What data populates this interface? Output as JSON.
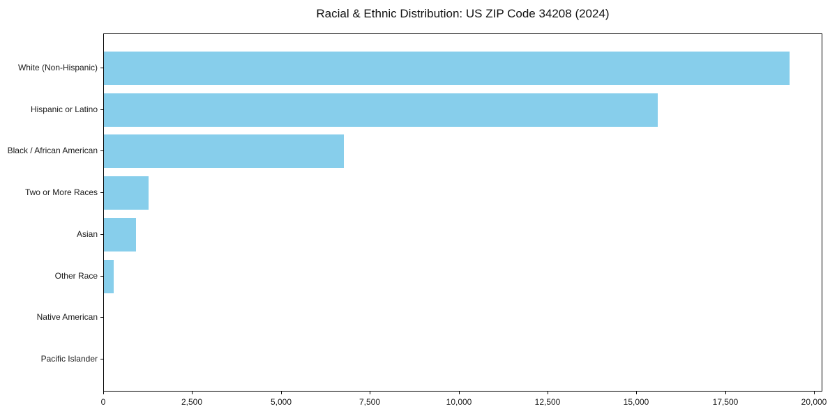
{
  "chart_data": {
    "type": "bar",
    "orientation": "horizontal",
    "title": "Racial & Ethnic Distribution: US ZIP Code 34208 (2024)",
    "xlabel": "",
    "ylabel": "",
    "categories": [
      "White (Non-Hispanic)",
      "Hispanic or Latino",
      "Black / African American",
      "Two or More Races",
      "Asian",
      "Other Race",
      "Native American",
      "Pacific Islander"
    ],
    "values": [
      19300,
      15580,
      6750,
      1250,
      900,
      280,
      0,
      0
    ],
    "xlim": [
      0,
      20240
    ],
    "x_ticks": [
      0,
      2500,
      5000,
      7500,
      10000,
      12500,
      15000,
      17500,
      20000
    ],
    "x_tick_labels": [
      "0",
      "2,500",
      "5,000",
      "7,500",
      "10,000",
      "12,500",
      "15,000",
      "17,500",
      "20,000"
    ],
    "bar_color": "#87CEEB",
    "grid": false,
    "legend_position": "none"
  }
}
